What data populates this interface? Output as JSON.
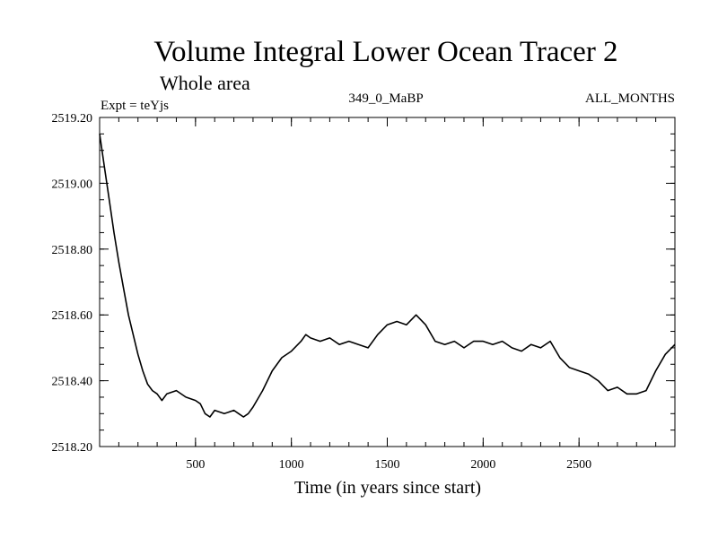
{
  "chart_data": {
    "type": "line",
    "title": "Volume Integral Lower Ocean Tracer 2",
    "subtitle": "Whole area",
    "expt_label": "Expt = teYjs",
    "center_label": "349_0_MaBP",
    "right_label": "ALL_MONTHS",
    "xlabel": "Time (in years since start)",
    "ylabel": "",
    "xlim": [
      0,
      3000
    ],
    "ylim": [
      2518.2,
      2519.2
    ],
    "x_major_ticks": [
      500,
      1000,
      1500,
      2000,
      2500
    ],
    "x_minor_step": 100,
    "y_major_ticks": [
      2518.2,
      2518.4,
      2518.6,
      2518.8,
      2519.0,
      2519.2
    ],
    "y_tick_labels": [
      "2518.20",
      "2518.40",
      "2518.60",
      "2518.80",
      "2519.00",
      "2519.20"
    ],
    "y_minor_step": 0.05,
    "series": [
      {
        "name": "Volume Integral Lower Ocean Tracer 2",
        "color": "#000000",
        "x": [
          0,
          25,
          50,
          75,
          100,
          125,
          150,
          175,
          200,
          225,
          250,
          275,
          300,
          325,
          350,
          400,
          450,
          500,
          525,
          550,
          575,
          600,
          650,
          700,
          725,
          750,
          775,
          800,
          850,
          900,
          950,
          1000,
          1050,
          1075,
          1100,
          1150,
          1200,
          1250,
          1300,
          1350,
          1400,
          1450,
          1500,
          1550,
          1600,
          1650,
          1700,
          1750,
          1800,
          1850,
          1900,
          1950,
          2000,
          2050,
          2100,
          2150,
          2200,
          2250,
          2300,
          2350,
          2400,
          2450,
          2500,
          2550,
          2600,
          2650,
          2700,
          2750,
          2800,
          2850,
          2900,
          2950,
          3000
        ],
        "values": [
          2519.15,
          2519.05,
          2518.95,
          2518.85,
          2518.76,
          2518.68,
          2518.6,
          2518.54,
          2518.48,
          2518.43,
          2518.39,
          2518.37,
          2518.36,
          2518.34,
          2518.36,
          2518.37,
          2518.35,
          2518.34,
          2518.33,
          2518.3,
          2518.29,
          2518.31,
          2518.3,
          2518.31,
          2518.3,
          2518.29,
          2518.3,
          2518.32,
          2518.37,
          2518.43,
          2518.47,
          2518.49,
          2518.52,
          2518.54,
          2518.53,
          2518.52,
          2518.53,
          2518.51,
          2518.52,
          2518.51,
          2518.5,
          2518.54,
          2518.57,
          2518.58,
          2518.57,
          2518.6,
          2518.57,
          2518.52,
          2518.51,
          2518.52,
          2518.5,
          2518.52,
          2518.52,
          2518.51,
          2518.52,
          2518.5,
          2518.49,
          2518.51,
          2518.5,
          2518.52,
          2518.47,
          2518.44,
          2518.43,
          2518.42,
          2518.4,
          2518.37,
          2518.38,
          2518.36,
          2518.36,
          2518.37,
          2518.43,
          2518.48,
          2518.51
        ]
      }
    ]
  }
}
